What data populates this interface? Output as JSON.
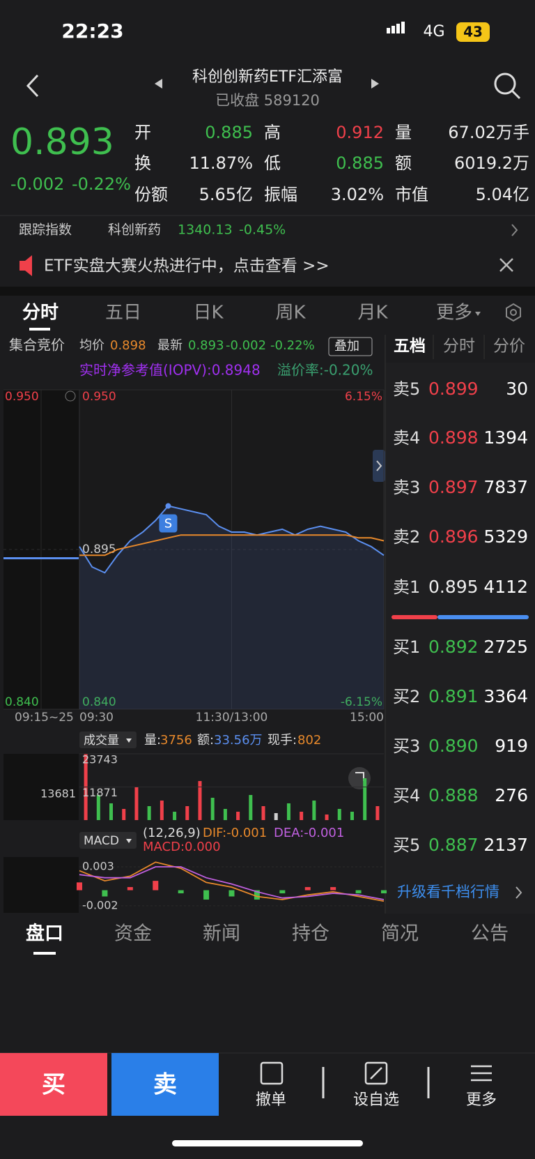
{
  "status": {
    "time": "22:23",
    "network": "4G",
    "battery": "43"
  },
  "header": {
    "title": "科创创新药ETF汇添富",
    "subtitle": "已收盘 589120"
  },
  "quote": {
    "price": "0.893",
    "change": "-0.002",
    "change_pct": "-0.22%",
    "stats": [
      [
        "开",
        "0.885"
      ],
      [
        "高",
        "0.912"
      ],
      [
        "量",
        "67.02万手"
      ],
      [
        "换",
        "11.87%"
      ],
      [
        "低",
        "0.885"
      ],
      [
        "额",
        "6019.2万"
      ],
      [
        "份额",
        "5.65亿"
      ],
      [
        "振幅",
        "3.02%"
      ],
      [
        "市值",
        "5.04亿"
      ]
    ]
  },
  "tracking": {
    "label": "跟踪指数",
    "name": "科创新药",
    "value": "1340.13",
    "change": "-0.45%"
  },
  "banner": "ETF实盘大赛火热进行中，点击查看 >>",
  "tabs": [
    "分时",
    "五日",
    "日K",
    "周K",
    "月K",
    "更多"
  ],
  "info": {
    "auction_label": "集合竞价",
    "avg": "0.898",
    "last": "0.893",
    "last_change": "-0.002",
    "last_pct": "-0.22%",
    "overlay": "叠加",
    "iopv": "实时净参考值(IOPV):0.8948",
    "premium": "溢价率:-0.20%",
    "trade_marker": "S",
    "auction_time": "09:15~25"
  },
  "chart_data": [
    {
      "type": "line",
      "x": [
        0,
        10,
        20,
        30,
        40,
        50,
        60,
        70,
        80,
        90,
        100,
        110,
        120,
        130,
        140,
        150,
        160,
        170,
        180,
        190,
        200,
        210,
        220,
        230,
        240
      ],
      "xlim": [
        0,
        240
      ],
      "xticks": [
        {
          "value": 0,
          "label": "09:30"
        },
        {
          "value": 120,
          "label": "11:30/13:00"
        },
        {
          "value": 240,
          "label": "15:00"
        }
      ],
      "ylim": [
        0.84,
        0.95
      ],
      "yticks": [
        {
          "value": 0.95,
          "label": "0.950"
        },
        0.895,
        {
          "value": 0.84,
          "label": "0.840"
        }
      ],
      "y2lim": [
        -6.15,
        6.15
      ],
      "y2ticks": [
        {
          "value": 6.15,
          "label": "6.15%"
        },
        {
          "value": -6.15,
          "label": "-6.15%"
        }
      ],
      "auction_value": 0.892,
      "series": [
        {
          "name": "最新",
          "color": "#5b8ff0",
          "values": [
            0.896,
            0.889,
            0.887,
            0.893,
            0.898,
            0.901,
            0.905,
            0.91,
            0.909,
            0.908,
            0.907,
            0.903,
            0.901,
            0.901,
            0.9,
            0.901,
            0.902,
            0.9,
            0.902,
            0.903,
            0.902,
            0.901,
            0.898,
            0.896,
            0.893
          ]
        },
        {
          "name": "均价",
          "color": "#e8892b",
          "values": [
            0.893,
            0.893,
            0.893,
            0.895,
            0.896,
            0.897,
            0.898,
            0.899,
            0.9,
            0.9,
            0.9,
            0.9,
            0.9,
            0.9,
            0.9,
            0.9,
            0.9,
            0.9,
            0.9,
            0.9,
            0.9,
            0.9,
            0.899,
            0.899,
            0.898
          ]
        }
      ]
    },
    {
      "type": "bar",
      "title": "成交量",
      "vol_label": "量:",
      "vol": "3756",
      "amt_label": "额:",
      "amt": "33.56万",
      "hand_label": "现手:",
      "hand": "802",
      "auction_label": "13681",
      "x": [
        5,
        15,
        25,
        35,
        45,
        55,
        65,
        75,
        85,
        95,
        105,
        115,
        125,
        135,
        145,
        155,
        165,
        175,
        185,
        195,
        205,
        215,
        225,
        235
      ],
      "values": [
        23743,
        9000,
        6000,
        4000,
        12000,
        5000,
        7000,
        3000,
        5000,
        14000,
        8000,
        4000,
        3000,
        9000,
        5000,
        2500,
        6000,
        3000,
        7000,
        2000,
        4000,
        3000,
        15000,
        5000
      ],
      "bar_colors": [
        "#f0404a",
        "#3fbf4f",
        "#3fbf4f",
        "#f0404a",
        "#f0404a",
        "#3fbf4f",
        "#f0404a",
        "#3fbf4f",
        "#f0404a",
        "#f0404a",
        "#3fbf4f",
        "#3fbf4f",
        "#f0404a",
        "#3fbf4f",
        "#f0404a",
        "#cfcfcf",
        "#3fbf4f",
        "#f0404a",
        "#3fbf4f",
        "#f0404a",
        "#3fbf4f",
        "#3fbf4f",
        "#3fbf4f",
        "#f0404a"
      ],
      "xlim": [
        0,
        240
      ],
      "ylim": [
        0,
        23743
      ],
      "yticks": [
        23743,
        11871
      ]
    },
    {
      "type": "macd",
      "title": "MACD",
      "params": "(12,26,9)",
      "dif_label": "DIF:-0.001",
      "dea_label": "DEA:-0.001",
      "macd_label": "MACD:0.000",
      "x": [
        0,
        20,
        40,
        60,
        80,
        100,
        120,
        140,
        160,
        180,
        200,
        220,
        240
      ],
      "xlim": [
        0,
        240
      ],
      "ylim": [
        -0.0029,
        0.00425
      ],
      "yticks": [
        0.003,
        -0.002
      ],
      "series": [
        {
          "color": "#e8892b",
          "values": [
            0.0025,
            0.0012,
            0.0018,
            0.0036,
            0.0028,
            0.001,
            0.0004,
            -0.0008,
            -0.0012,
            -0.0006,
            -0.0002,
            -0.0008,
            -0.0014
          ]
        },
        {
          "color": "#c060e0",
          "values": [
            0.002,
            0.0016,
            0.0016,
            0.003,
            0.003,
            0.0016,
            0.0008,
            -0.0002,
            -0.001,
            -0.0008,
            -0.0004,
            -0.0006,
            -0.0012
          ]
        }
      ],
      "histogram": [
        0.001,
        -0.0008,
        0.0004,
        0.0012,
        -0.0004,
        -0.0012,
        -0.0008,
        -0.0012,
        -0.0004,
        0.0004,
        0.0004,
        -0.0004,
        -0.0004
      ]
    }
  ],
  "order_book": {
    "tabs": [
      "五档",
      "分时",
      "分价"
    ],
    "asks": [
      [
        "卖5",
        "0.899",
        30
      ],
      [
        "卖4",
        "0.898",
        1394
      ],
      [
        "卖3",
        "0.897",
        7837
      ],
      [
        "卖2",
        "0.896",
        5329
      ],
      [
        "卖1",
        "0.895",
        4112
      ]
    ],
    "bids": [
      [
        "买1",
        "0.892",
        2725
      ],
      [
        "买2",
        "0.891",
        3364
      ],
      [
        "买3",
        "0.890",
        919
      ],
      [
        "买4",
        "0.888",
        276
      ],
      [
        "买5",
        "0.887",
        2137
      ]
    ],
    "upgrade": "升级看千档行情"
  },
  "bottom_tabs": [
    "盘口",
    "资金",
    "新闻",
    "持仓",
    "简况",
    "公告"
  ],
  "actions": {
    "buy": "买",
    "sell": "卖",
    "cancel": "撤单",
    "watch": "设自选",
    "more": "更多"
  }
}
